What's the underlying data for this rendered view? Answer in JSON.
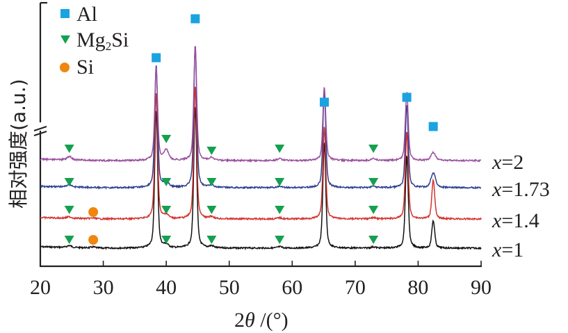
{
  "chart_data": {
    "type": "line",
    "title": "",
    "xlabel": "2θ /(°)",
    "xlabel_parts": {
      "num": "2",
      "theta": "θ",
      "unit": " /(°)"
    },
    "ylabel": "相对强度(a.u.)",
    "xlim": [
      20,
      90
    ],
    "xticks": [
      20,
      30,
      40,
      50,
      60,
      70,
      80,
      90
    ],
    "y_axis_break": true,
    "grid": false,
    "legend": {
      "placement": "top-left",
      "entries": [
        {
          "label": "Al",
          "marker": "square",
          "color": "#1aa3e0"
        },
        {
          "label": "Mg2Si",
          "label_main": "Mg",
          "label_sub": "2",
          "label_tail": "Si",
          "marker": "triangle-down",
          "color": "#14a050"
        },
        {
          "label": "Si",
          "marker": "circle",
          "color": "#f0860e"
        }
      ]
    },
    "series": [
      {
        "name": "x=1",
        "label_var": "x",
        "label_val": "=1",
        "color": "#111111",
        "baseline": 0,
        "peaks": [
          [
            24.6,
            0.8
          ],
          [
            28.4,
            0.4
          ],
          [
            38.4,
            60
          ],
          [
            40.0,
            1.2
          ],
          [
            44.6,
            62
          ],
          [
            47.2,
            0.8
          ],
          [
            58.0,
            0.6
          ],
          [
            65.1,
            46
          ],
          [
            72.9,
            0.5
          ],
          [
            78.2,
            40
          ],
          [
            82.4,
            12
          ]
        ]
      },
      {
        "name": "x=1.4",
        "label_var": "x",
        "label_val": "=1.4",
        "color": "#d2322d",
        "baseline": 1,
        "peaks": [
          [
            24.6,
            0.6
          ],
          [
            28.4,
            0.3
          ],
          [
            38.4,
            55
          ],
          [
            40.0,
            1.6
          ],
          [
            44.6,
            58
          ],
          [
            47.2,
            0.9
          ],
          [
            58.0,
            0.5
          ],
          [
            65.1,
            40
          ],
          [
            72.9,
            0.5
          ],
          [
            78.2,
            38
          ],
          [
            82.4,
            17
          ]
        ]
      },
      {
        "name": "x=1.73",
        "label_var": "x",
        "label_val": "=1.73",
        "color": "#2e3f8f",
        "baseline": 2,
        "peaks": [
          [
            24.6,
            1.1
          ],
          [
            38.4,
            53
          ],
          [
            40.0,
            2.6
          ],
          [
            44.6,
            62
          ],
          [
            47.2,
            1.0
          ],
          [
            58.0,
            0.6
          ],
          [
            65.1,
            42
          ],
          [
            72.9,
            0.6
          ],
          [
            78.2,
            36
          ],
          [
            82.4,
            6.5
          ]
        ]
      },
      {
        "name": "x=2",
        "label_var": "x",
        "label_val": "=2",
        "color": "#9b4f9f",
        "baseline": 3,
        "peaks": [
          [
            24.6,
            1.4
          ],
          [
            38.4,
            40
          ],
          [
            40.0,
            4.4
          ],
          [
            44.6,
            50
          ],
          [
            47.2,
            1.3
          ],
          [
            58.0,
            0.9
          ],
          [
            65.1,
            32
          ],
          [
            72.9,
            0.9
          ],
          [
            78.2,
            30
          ],
          [
            82.4,
            3.5
          ]
        ]
      }
    ],
    "phase_markers": {
      "Al": [
        38.4,
        44.6,
        65.1,
        78.2,
        82.4
      ],
      "Mg2Si": [
        24.6,
        40.0,
        47.2,
        58.0,
        72.9
      ],
      "Si": [
        28.4
      ]
    }
  }
}
